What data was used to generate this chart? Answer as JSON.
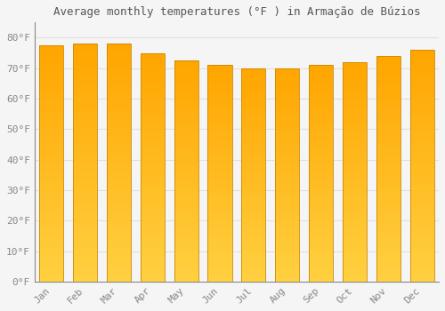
{
  "title": "Average monthly temperatures (°F ) in Armação de Búzios",
  "months": [
    "Jan",
    "Feb",
    "Mar",
    "Apr",
    "May",
    "Jun",
    "Jul",
    "Aug",
    "Sep",
    "Oct",
    "Nov",
    "Dec"
  ],
  "values": [
    77.5,
    78.0,
    78.0,
    75.0,
    72.5,
    71.0,
    70.0,
    70.0,
    71.0,
    72.0,
    74.0,
    76.0
  ],
  "bar_color_top": "#FFA500",
  "bar_color_bottom": "#FFD040",
  "bar_edge_color": "#CC8800",
  "background_color": "#f5f5f5",
  "grid_color": "#e0e0e0",
  "ytick_labels": [
    "0°F",
    "10°F",
    "20°F",
    "30°F",
    "40°F",
    "50°F",
    "60°F",
    "70°F",
    "80°F"
  ],
  "ytick_values": [
    0,
    10,
    20,
    30,
    40,
    50,
    60,
    70,
    80
  ],
  "ylim": [
    0,
    85
  ],
  "title_fontsize": 9,
  "tick_fontsize": 8,
  "tick_color": "#888888",
  "axis_color": "#888888",
  "bar_width": 0.72
}
